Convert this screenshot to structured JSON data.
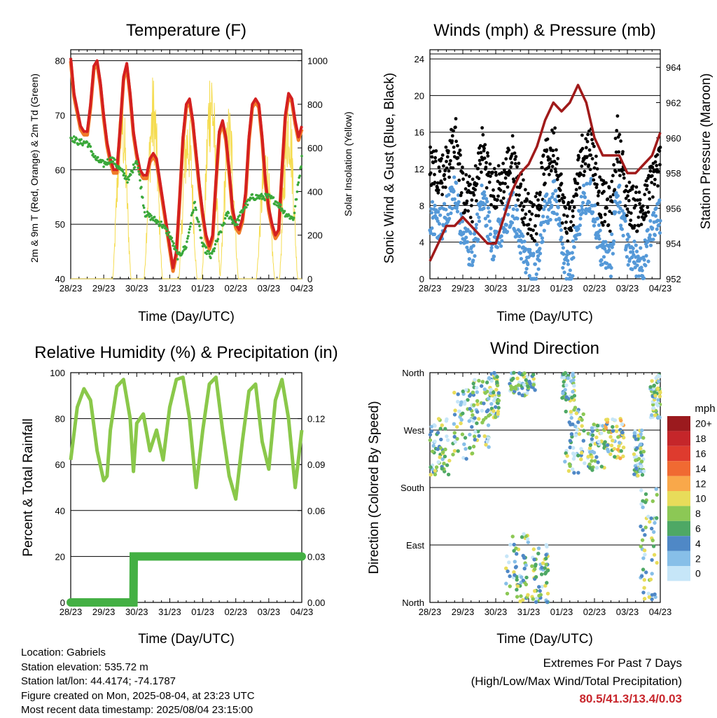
{
  "charts": {
    "temperature": {
      "title": "Temperature (F)",
      "xlabel": "Time (Day/UTC)",
      "ylabel": "2m & 9m T (Red, Orange) & 2m Td (Green)",
      "y2label": "Solar Insolation (Yellow)"
    },
    "winds": {
      "title": "Winds (mph) & Pressure (mb)",
      "xlabel": "Time (Day/UTC)",
      "ylabel": "Sonic Wind & Gust (Blue, Black)",
      "y2label": "Station Pressure (Maroon)"
    },
    "humidity": {
      "title": "Relative Humidity (%) & Precipitation (in)",
      "xlabel": "Time (Day/UTC)",
      "ylabel": "Percent & Total Rainfall"
    },
    "direction": {
      "title": "Wind Direction",
      "xlabel": "Time (Day/UTC)",
      "ylabel": "Direction (Colored By Speed)",
      "colorbar_title": "mph"
    }
  },
  "footer": {
    "location": "Location: Gabriels",
    "elevation": "Station elevation: 535.72 m",
    "latlon": "Station lat/lon: 44.4174; -74.1787",
    "created": "Figure created on Mon, 2025-08-04, at 23:23 UTC",
    "recent": "Most recent data timestamp: 2025/08/04 23:15:00",
    "extremes_title": "Extremes For Past 7 Days",
    "extremes_subtitle": "(High/Low/Max Wind/Total Precipitation)",
    "extremes_values": "80.5/41.3/13.4/0.03"
  },
  "chart_data": [
    {
      "type": "line",
      "title": "Temperature (F)",
      "xlabel": "Time (Day/UTC)",
      "ylabel": "2m & 9m T (Red, Orange) & 2m Td (Green)",
      "y2label": "Solar Insolation (Yellow)",
      "xticks": [
        "28/23",
        "29/23",
        "30/23",
        "31/23",
        "01/23",
        "02/23",
        "03/23",
        "04/23"
      ],
      "ylim": [
        40,
        82
      ],
      "yticks": [
        40,
        50,
        60,
        70,
        80
      ],
      "y2lim": [
        0,
        1050
      ],
      "y2ticks": [
        0,
        200,
        400,
        600,
        800,
        1000
      ],
      "colors": {
        "t2m": "#d42020",
        "t9m": "#f07a28",
        "td": "#3aa83a",
        "solar": "#f5dc50"
      },
      "series": [
        {
          "name": "2m T",
          "color": "#d42020",
          "x": [
            0,
            0.1,
            0.2,
            0.3,
            0.4,
            0.5,
            0.6,
            0.7,
            0.8,
            0.9,
            1,
            1.1,
            1.2,
            1.3,
            1.4,
            1.5,
            1.6,
            1.7,
            1.8,
            1.9,
            2,
            2.1,
            2.2,
            2.3,
            2.4,
            2.5,
            2.6,
            2.7,
            2.8,
            2.9,
            3,
            3.1,
            3.2,
            3.3,
            3.4,
            3.5,
            3.6,
            3.7,
            3.8,
            3.9,
            4,
            4.1,
            4.2,
            4.3,
            4.4,
            4.5,
            4.6,
            4.7,
            4.8,
            4.9,
            5,
            5.1,
            5.2,
            5.3,
            5.4,
            5.5,
            5.6,
            5.7,
            5.8,
            5.9,
            6,
            6.1,
            6.2,
            6.3,
            6.4,
            6.5,
            6.6,
            6.7,
            6.8,
            6.9,
            7
          ],
          "y": [
            80.5,
            74,
            71,
            68,
            67,
            67,
            72,
            79,
            80,
            76,
            70,
            65,
            62,
            60,
            60,
            68,
            77,
            79.5,
            74,
            67,
            63,
            60,
            59,
            59,
            62,
            63,
            62,
            58,
            54,
            50,
            46,
            42,
            45,
            55,
            66,
            72,
            73,
            69,
            63,
            57,
            52,
            48,
            46,
            48,
            58,
            67,
            69,
            66,
            60,
            53,
            50,
            49,
            51,
            56,
            66,
            72,
            73,
            72,
            66,
            58,
            53,
            50,
            48,
            49,
            60,
            70,
            74,
            73,
            69,
            66,
            68
          ]
        },
        {
          "name": "2m Td",
          "color": "#3aa83a",
          "x": [
            0,
            0.25,
            0.5,
            0.75,
            1,
            1.25,
            1.5,
            1.75,
            2,
            2.25,
            2.5,
            2.75,
            3,
            3.25,
            3.5,
            3.75,
            4,
            4.25,
            4.5,
            4.75,
            5,
            5.25,
            5.5,
            5.75,
            6,
            6.25,
            6.5,
            6.75,
            7
          ],
          "y": [
            66,
            65,
            65,
            62,
            61,
            62,
            60,
            58,
            62,
            52,
            51,
            50,
            48,
            44,
            46,
            54,
            46,
            44,
            48,
            52,
            50,
            53,
            55,
            55,
            55,
            54,
            52,
            51,
            62
          ]
        }
      ]
    },
    {
      "type": "scatter",
      "title": "Winds (mph) & Pressure (mb)",
      "xlabel": "Time (Day/UTC)",
      "ylabel": "Sonic Wind & Gust (Blue, Black)",
      "y2label": "Station Pressure (Maroon)",
      "xticks": [
        "28/23",
        "29/23",
        "30/23",
        "31/23",
        "01/23",
        "02/23",
        "03/23",
        "04/23"
      ],
      "ylim": [
        0,
        25
      ],
      "yticks": [
        0,
        4,
        8,
        12,
        16,
        20,
        24
      ],
      "y2lim": [
        952,
        965
      ],
      "y2ticks": [
        952,
        954,
        956,
        958,
        960,
        962,
        964
      ],
      "colors": {
        "wind": "#5599d8",
        "gust": "#000000",
        "pressure": "#a01a1a"
      },
      "series": [
        {
          "name": "Station Pressure",
          "color": "#a01a1a",
          "x": [
            0,
            0.25,
            0.5,
            0.75,
            1,
            1.25,
            1.5,
            1.75,
            2,
            2.25,
            2.5,
            2.75,
            3,
            3.25,
            3.5,
            3.75,
            4,
            4.25,
            4.5,
            4.75,
            5,
            5.25,
            5.5,
            5.75,
            6,
            6.25,
            6.5,
            6.75,
            7
          ],
          "y": [
            953,
            954,
            955,
            955,
            955.5,
            955,
            954.5,
            954,
            954,
            955.5,
            957,
            958,
            958.5,
            959.5,
            961,
            962,
            961.5,
            962,
            963,
            962,
            960,
            959,
            959,
            959,
            958,
            958,
            958.5,
            959,
            960.3
          ]
        }
      ]
    },
    {
      "type": "line",
      "title": "Relative Humidity (%) & Precipitation (in)",
      "xlabel": "Time (Day/UTC)",
      "ylabel": "Percent & Total Rainfall",
      "xticks": [
        "28/23",
        "29/23",
        "30/23",
        "31/23",
        "01/23",
        "02/23",
        "03/23",
        "04/23"
      ],
      "ylim": [
        0,
        100
      ],
      "yticks": [
        0,
        20,
        40,
        60,
        80,
        100
      ],
      "y2lim": [
        0,
        0.15
      ],
      "y2ticks": [
        0.0,
        0.03,
        0.06,
        0.09,
        0.12
      ],
      "colors": {
        "rh": "#8ac84a",
        "precip": "#44b044"
      },
      "series": [
        {
          "name": "Relative Humidity",
          "color": "#8ac84a",
          "x": [
            0,
            0.2,
            0.4,
            0.6,
            0.8,
            1,
            1.1,
            1.2,
            1.4,
            1.6,
            1.8,
            1.9,
            2,
            2.2,
            2.4,
            2.6,
            2.8,
            3,
            3.2,
            3.4,
            3.6,
            3.8,
            4,
            4.2,
            4.4,
            4.6,
            4.8,
            5,
            5.2,
            5.4,
            5.6,
            5.8,
            6,
            6.2,
            6.4,
            6.6,
            6.8,
            7
          ],
          "y": [
            62,
            85,
            93,
            88,
            66,
            53,
            55,
            75,
            94,
            97,
            80,
            57,
            78,
            82,
            66,
            75,
            62,
            85,
            97,
            98,
            80,
            50,
            75,
            95,
            98,
            75,
            55,
            45,
            70,
            92,
            95,
            70,
            58,
            88,
            97,
            80,
            50,
            75
          ]
        },
        {
          "name": "Total Precipitation",
          "color": "#44b044",
          "x": [
            0,
            1.9,
            1.91,
            7
          ],
          "y": [
            0,
            0,
            0.03,
            0.03
          ]
        }
      ]
    },
    {
      "type": "scatter",
      "title": "Wind Direction",
      "xlabel": "Time (Day/UTC)",
      "ylabel": "Direction (Colored By Speed)",
      "xticks": [
        "28/23",
        "29/23",
        "30/23",
        "31/23",
        "01/23",
        "02/23",
        "03/23",
        "04/23"
      ],
      "yticks": [
        "North",
        "East",
        "South",
        "West",
        "North"
      ],
      "colorbar": {
        "title": "mph",
        "labels": [
          "20+",
          "18",
          "16",
          "14",
          "12",
          "10",
          "8",
          "6",
          "4",
          "2",
          "0"
        ],
        "colors": [
          "#9b1a1e",
          "#c5262a",
          "#de3b2e",
          "#f06a32",
          "#f9a84a",
          "#e8dc5a",
          "#8cc855",
          "#4ea865",
          "#4f88c6",
          "#87bfe8",
          "#c6e6f8"
        ]
      }
    }
  ]
}
